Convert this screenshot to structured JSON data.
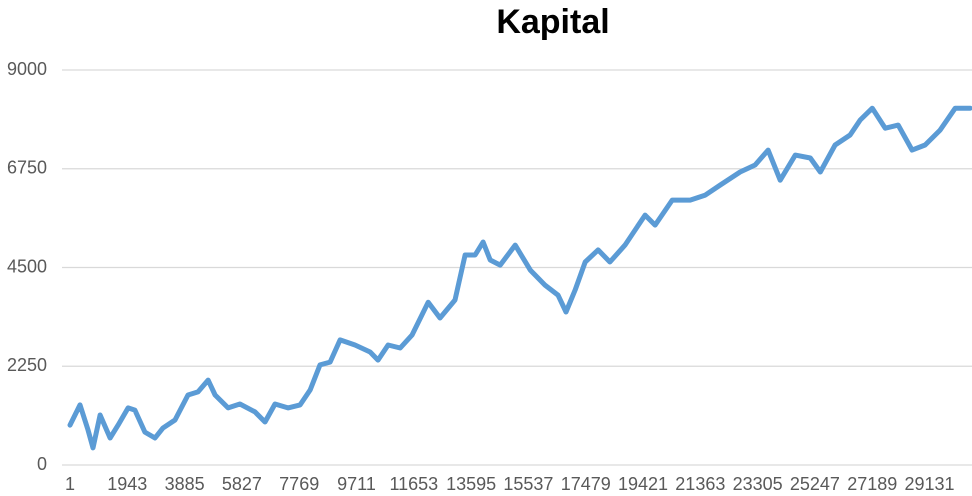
{
  "chart_data": {
    "type": "line",
    "title": "Kapital",
    "x": [
      1,
      340,
      610,
      780,
      1020,
      1360,
      1630,
      1970,
      2200,
      2540,
      2880,
      3150,
      3560,
      4000,
      4340,
      4680,
      4920,
      5360,
      5760,
      6270,
      6610,
      6950,
      7390,
      7800,
      8140,
      8475,
      8815,
      9155,
      9660,
      10170,
      10440,
      10780,
      11190,
      11590,
      12140,
      12540,
      13050,
      13390,
      13730,
      14000,
      14240,
      14580,
      15090,
      15600,
      16100,
      16540,
      16810,
      17120,
      17460,
      17900,
      18300,
      18810,
      19490,
      19830,
      20410,
      21020,
      21530,
      22040,
      22710,
      23220,
      23660,
      24070,
      24580,
      25090,
      25430,
      25930,
      26440,
      26780,
      27190,
      27630,
      28070,
      28540,
      28980,
      29490,
      30000,
      30510
    ],
    "series": [
      {
        "name": "Kapital",
        "color": "#5b9bd5",
        "values": [
          910,
          1370,
          800,
          390,
          1140,
          615,
          910,
          1300,
          1250,
          750,
          615,
          840,
          1025,
          1595,
          1665,
          1935,
          1595,
          1300,
          1390,
          1210,
          980,
          1390,
          1300,
          1370,
          1710,
          2280,
          2345,
          2850,
          2735,
          2575,
          2390,
          2735,
          2665,
          2960,
          3710,
          3350,
          3760,
          4785,
          4785,
          5080,
          4670,
          4555,
          5010,
          4440,
          4100,
          3870,
          3485,
          3985,
          4625,
          4900,
          4625,
          5010,
          5695,
          5465,
          6035,
          6035,
          6150,
          6380,
          6675,
          6835,
          7175,
          6490,
          7060,
          6995,
          6675,
          7290,
          7520,
          7860,
          8130,
          7675,
          7745,
          7175,
          7290,
          7630,
          8130,
          8130
        ]
      }
    ],
    "xlim": [
      1,
      30570
    ],
    "xticks": [
      1,
      1943,
      3885,
      5827,
      7769,
      9711,
      11653,
      13595,
      15537,
      17479,
      19421,
      21363,
      23305,
      25247,
      27189,
      29131
    ],
    "ylim": [
      0,
      9000
    ],
    "yticks": [
      0,
      2250,
      4500,
      6750,
      9000
    ],
    "grid": true
  }
}
